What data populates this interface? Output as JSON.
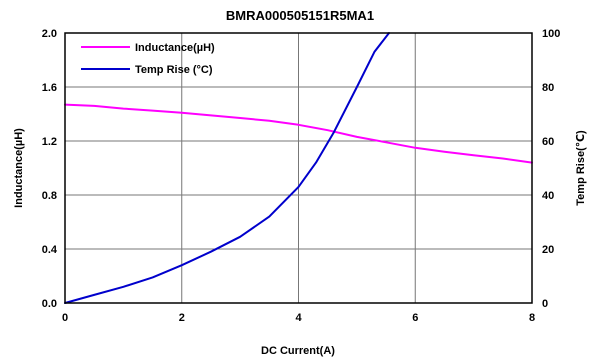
{
  "chart_data": {
    "type": "line",
    "title": "BMRA000505151R5MA1",
    "xlabel": "DC Current(A)",
    "ylabel_left": "Inductance(µH)",
    "ylabel_right": "Temp Rise(℃)",
    "xlim": [
      0,
      8
    ],
    "ylim_left": [
      0,
      2.0
    ],
    "ylim_right": [
      0,
      100
    ],
    "x_ticks": [
      "0",
      "2",
      "4",
      "6",
      "8"
    ],
    "y_left_ticks": [
      "0.0",
      "0.4",
      "0.8",
      "1.2",
      "1.6",
      "2.0"
    ],
    "y_right_ticks": [
      "0",
      "20",
      "40",
      "60",
      "80",
      "100"
    ],
    "grid": true,
    "legend_position": "top-left",
    "series": [
      {
        "name": "Inductance(µH)",
        "axis": "left",
        "color": "#ff00ff",
        "x": [
          0,
          0.5,
          1,
          1.5,
          2,
          2.5,
          3,
          3.5,
          4,
          4.5,
          5,
          5.5,
          6,
          6.5,
          7,
          7.5,
          8
        ],
        "y": [
          1.47,
          1.46,
          1.44,
          1.425,
          1.41,
          1.39,
          1.37,
          1.35,
          1.32,
          1.28,
          1.23,
          1.19,
          1.15,
          1.12,
          1.095,
          1.07,
          1.04
        ]
      },
      {
        "name": "Temp Rise (°C)",
        "axis": "right",
        "color": "#0000cc",
        "x": [
          0,
          0.5,
          1,
          1.5,
          2,
          2.5,
          3,
          3.5,
          4,
          4.3,
          4.6,
          5,
          5.3,
          5.55
        ],
        "y": [
          0,
          3,
          6,
          9.5,
          14,
          19,
          24.5,
          32,
          43,
          52,
          63,
          80,
          93,
          100
        ]
      }
    ]
  }
}
